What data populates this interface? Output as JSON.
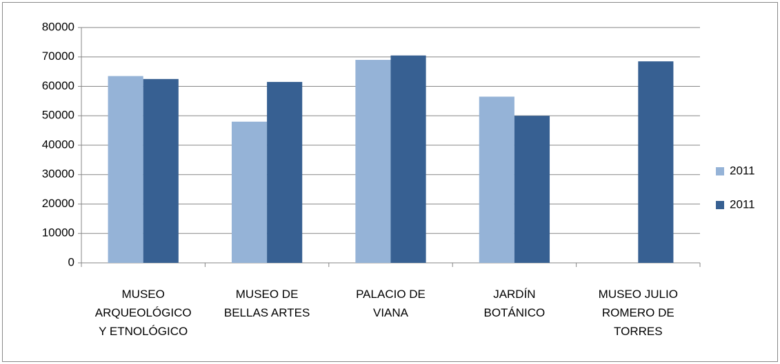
{
  "chart_data": {
    "type": "bar",
    "categories": [
      "MUSEO ARQUEOLÓGICO Y ETNOLÓGICO",
      "MUSEO DE BELLAS ARTES",
      "PALACIO DE VIANA",
      "JARDÍN BOTÁNICO",
      "MUSEO JULIO ROMERO DE TORRES"
    ],
    "series": [
      {
        "name": "2011",
        "color": "#95b3d7",
        "values": [
          63500,
          48000,
          69000,
          56500,
          null
        ]
      },
      {
        "name": "2011",
        "color": "#376092",
        "values": [
          62500,
          61500,
          70500,
          50000,
          68500
        ]
      }
    ],
    "ylim": [
      0,
      80000
    ],
    "yticks": [
      0,
      10000,
      20000,
      30000,
      40000,
      50000,
      60000,
      70000,
      80000
    ],
    "grid": true,
    "legend": "right"
  }
}
